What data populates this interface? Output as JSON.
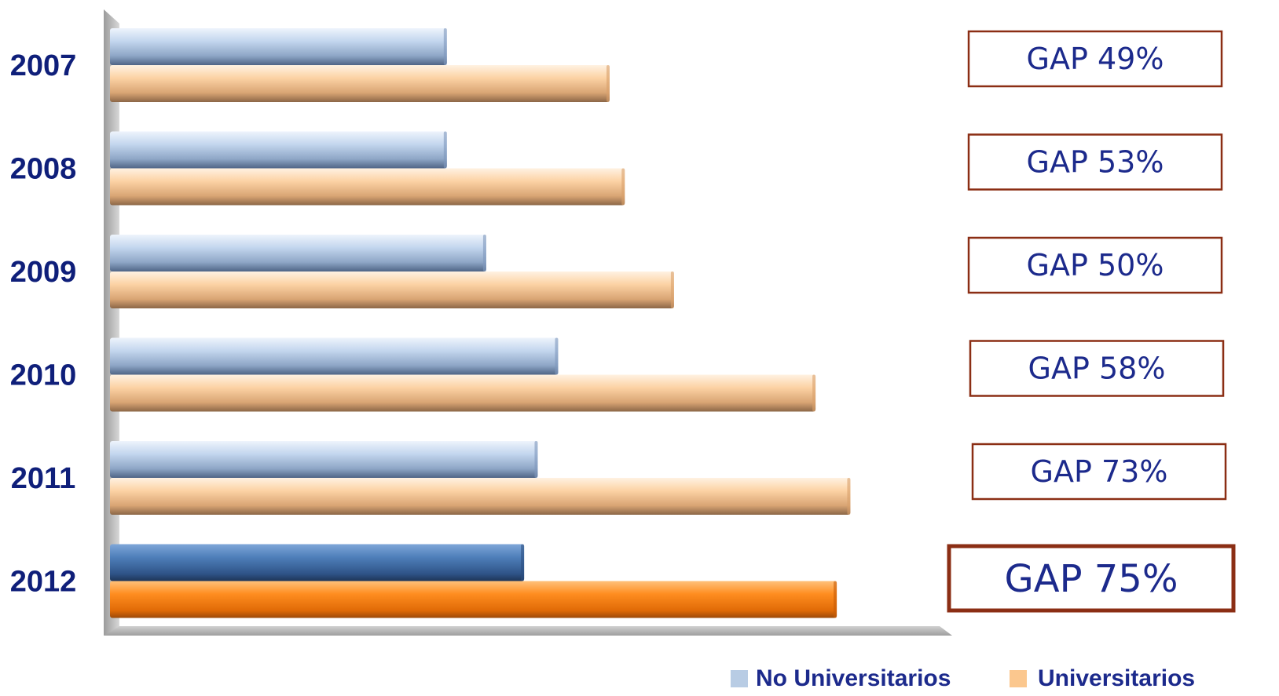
{
  "chart_data": {
    "type": "bar",
    "orientation": "horizontal",
    "categories": [
      "2007",
      "2008",
      "2009",
      "2010",
      "2011",
      "2012"
    ],
    "series": [
      {
        "name": "No Universitarios",
        "values": [
          445,
          445,
          497,
          592,
          565,
          547
        ]
      },
      {
        "name": "Universitarios",
        "values": [
          660,
          680,
          745,
          932,
          978,
          960
        ]
      }
    ],
    "highlight_category": "2012",
    "annotations": [
      "GAP 49%",
      "GAP 53%",
      "GAP 50%",
      "GAP 58%",
      "GAP 73%",
      "GAP 75%"
    ],
    "xlim": [
      0,
      1100
    ],
    "grid": false,
    "legend_position": "bottom-right",
    "colors": {
      "no_univ": "#b8cce4",
      "no_univ_dark": "#3e6391",
      "univ": "#fbc78e",
      "univ_dark": "#ff7f10",
      "gap_border": "#8b2e14",
      "label": "#0f1f7a"
    }
  },
  "legend": {
    "no_univ_label": "No Universitarios",
    "univ_label": "Universitarios"
  }
}
